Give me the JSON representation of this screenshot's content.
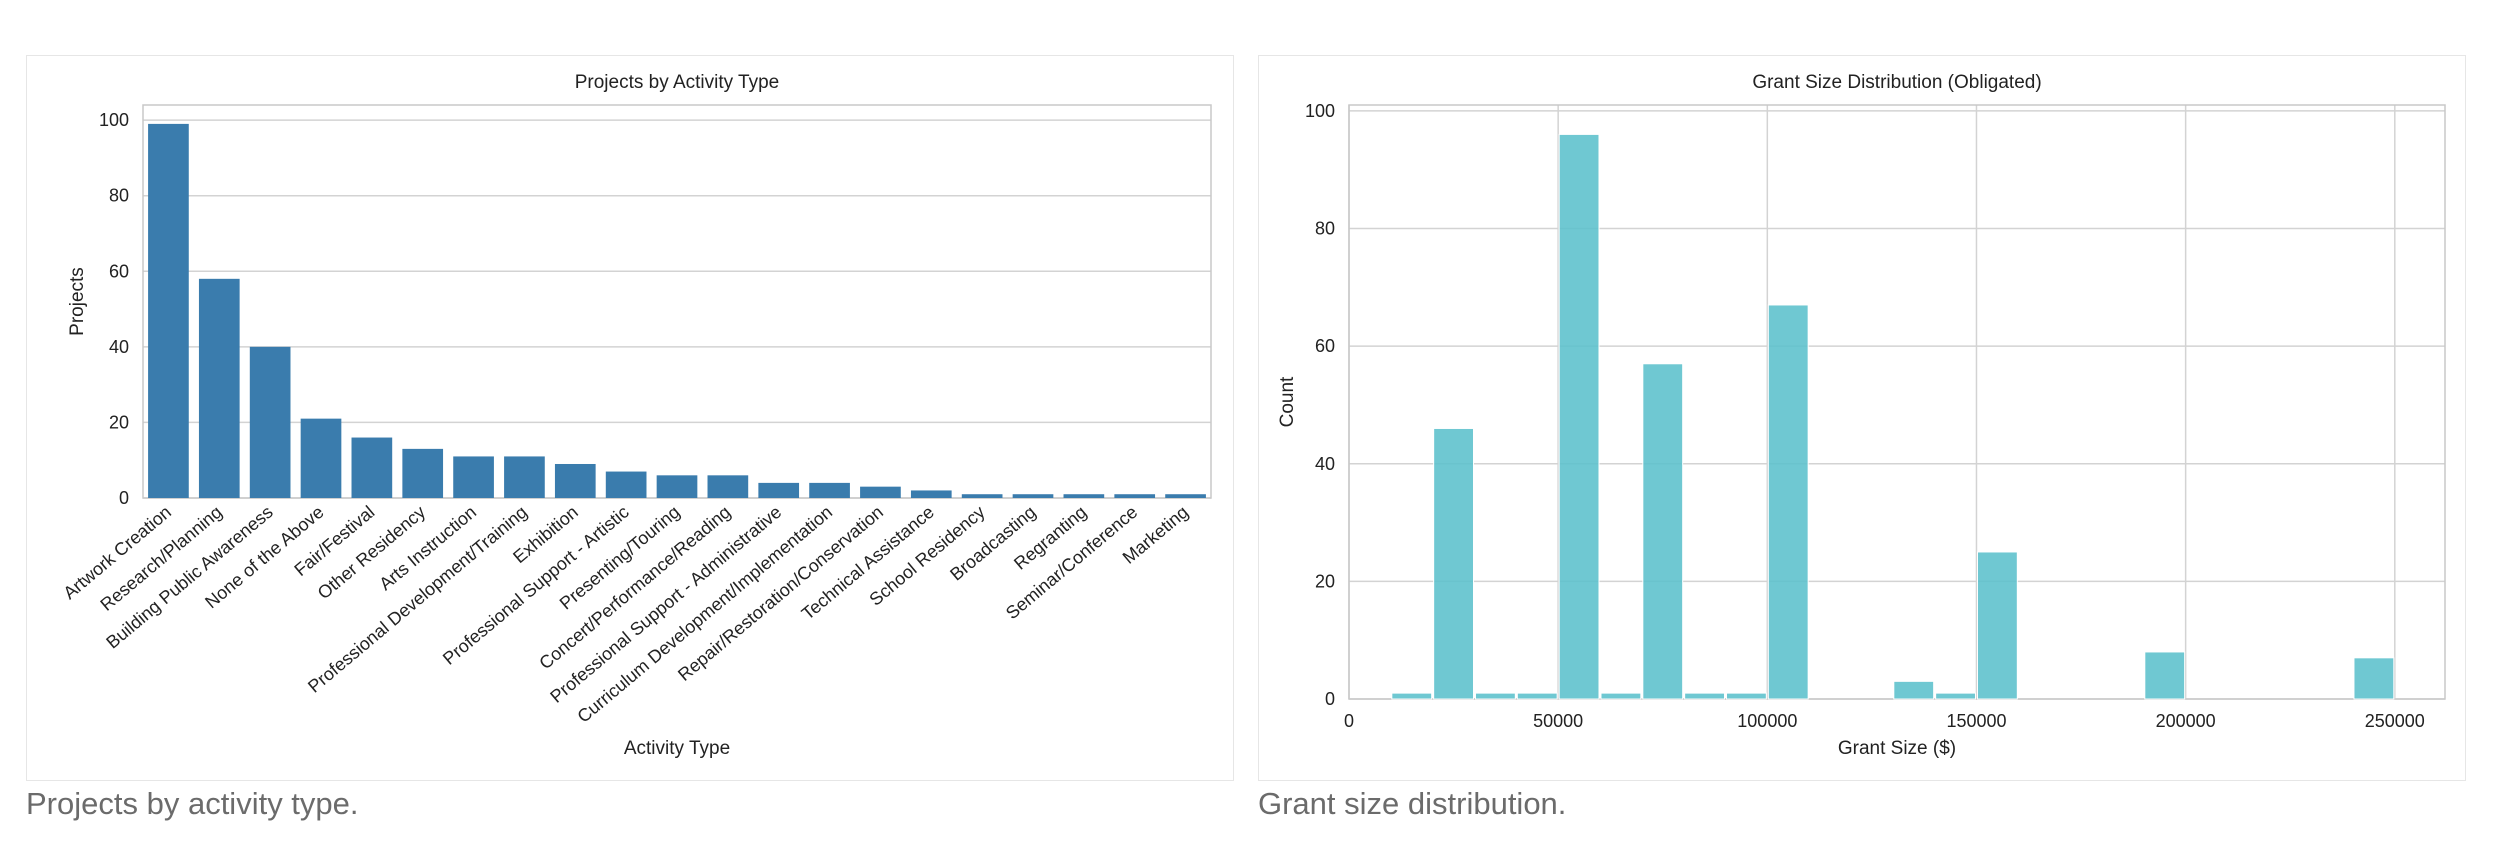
{
  "chart_data": [
    {
      "type": "bar",
      "title": "Projects by Activity Type",
      "xlabel": "Activity Type",
      "ylabel": "Projects",
      "ylim": [
        0,
        104
      ],
      "yticks": [
        0,
        20,
        40,
        60,
        80,
        100
      ],
      "grid": true,
      "color": "#3a7cad",
      "categories": [
        "Artwork Creation",
        "Research/Planning",
        "Building Public Awareness",
        "None of the Above",
        "Fair/Festival",
        "Other Residency",
        "Arts Instruction",
        "Professional Development/Training",
        "Exhibition",
        "Professional Support - Artistic",
        "Presenting/Touring",
        "Concert/Performance/Reading",
        "Professional Support - Administrative",
        "Curriculum Development/Implementation",
        "Repair/Restoration/Conservation",
        "Technical Assistance",
        "School Residency",
        "Broadcasting",
        "Regranting",
        "Seminar/Conference",
        "Marketing"
      ],
      "values": [
        99,
        58,
        40,
        21,
        16,
        13,
        11,
        11,
        9,
        7,
        6,
        6,
        4,
        4,
        3,
        2,
        1,
        1,
        1,
        1,
        1
      ]
    },
    {
      "type": "bar",
      "subtype": "histogram",
      "title": "Grant Size Distribution (Obligated)",
      "xlabel": "Grant Size ($)",
      "ylabel": "Count",
      "xlim": [
        0,
        262000
      ],
      "ylim": [
        0,
        101
      ],
      "xticks": [
        0,
        50000,
        100000,
        150000,
        200000,
        250000
      ],
      "yticks": [
        0,
        20,
        40,
        60,
        80,
        100
      ],
      "grid": true,
      "color": "#5bc0cc",
      "bin_width": 10000,
      "bins": [
        {
          "start": 10000,
          "count": 1
        },
        {
          "start": 20000,
          "count": 46
        },
        {
          "start": 30000,
          "count": 1
        },
        {
          "start": 40000,
          "count": 1
        },
        {
          "start": 50000,
          "count": 96
        },
        {
          "start": 60000,
          "count": 1
        },
        {
          "start": 70000,
          "count": 57
        },
        {
          "start": 80000,
          "count": 1
        },
        {
          "start": 90000,
          "count": 1
        },
        {
          "start": 100000,
          "count": 67
        },
        {
          "start": 110000,
          "count": 0
        },
        {
          "start": 120000,
          "count": 0
        },
        {
          "start": 130000,
          "count": 3
        },
        {
          "start": 140000,
          "count": 1
        },
        {
          "start": 150000,
          "count": 25
        },
        {
          "start": 160000,
          "count": 0
        },
        {
          "start": 170000,
          "count": 0
        },
        {
          "start": 180000,
          "count": 0
        },
        {
          "start": 190000,
          "count": 8
        },
        {
          "start": 200000,
          "count": 0
        },
        {
          "start": 210000,
          "count": 0
        },
        {
          "start": 220000,
          "count": 0
        },
        {
          "start": 230000,
          "count": 0
        },
        {
          "start": 240000,
          "count": 7
        }
      ]
    }
  ],
  "captions": {
    "left": "Projects by activity type.",
    "right": "Grant size distribution."
  }
}
